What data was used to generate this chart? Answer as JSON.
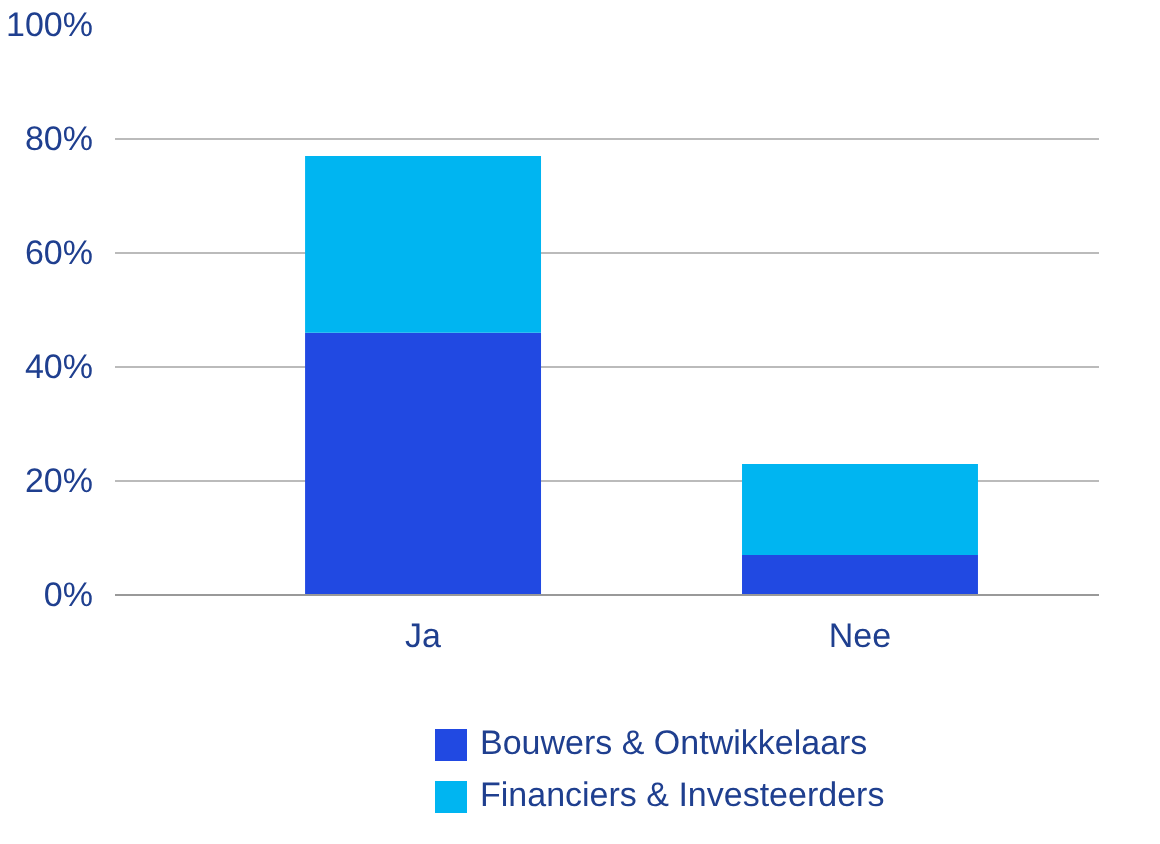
{
  "chart_data": {
    "type": "bar",
    "stacked": true,
    "categories": [
      "Ja",
      "Nee"
    ],
    "series": [
      {
        "name": "Bouwers & Ontwikkelaars",
        "color": "#2149e2",
        "values": [
          46,
          7
        ]
      },
      {
        "name": "Financiers & Investeerders",
        "color": "#00b5f1",
        "values": [
          31,
          16
        ]
      }
    ],
    "ylim": [
      0,
      100
    ],
    "yticks": [
      {
        "value": 0,
        "label": "0%"
      },
      {
        "value": 20,
        "label": "20%"
      },
      {
        "value": 40,
        "label": "40%"
      },
      {
        "value": 60,
        "label": "60%"
      },
      {
        "value": 80,
        "label": "80%"
      },
      {
        "value": 100,
        "label": "100%"
      }
    ],
    "grid": "y",
    "legend": "bottom"
  }
}
